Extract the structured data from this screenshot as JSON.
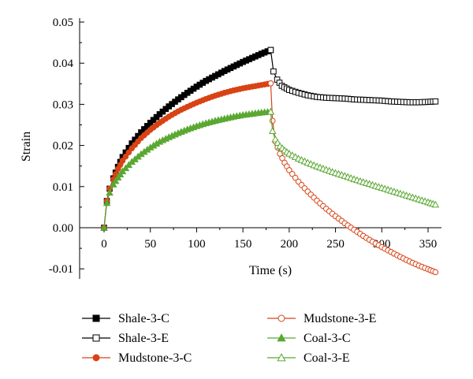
{
  "chart_data": {
    "type": "line",
    "xlabel": "Time (s)",
    "ylabel": "Strain",
    "xlim": [
      -10,
      370
    ],
    "ylim": [
      -0.015,
      0.05
    ],
    "x_ticks": [
      "0",
      "50",
      "100",
      "150",
      "200",
      "250",
      "300",
      "350"
    ],
    "y_ticks": [
      "0.05",
      "0.04",
      "0.03",
      "0.02",
      "0.01",
      "0.00",
      "-0.01"
    ],
    "legend_position": "bottom",
    "series": [
      {
        "name": "Shale-3-C",
        "color": "#000000",
        "marker": "square",
        "filled": true,
        "x": [
          0,
          3,
          6,
          10,
          15,
          20,
          30,
          40,
          50,
          60,
          70,
          80,
          90,
          100,
          110,
          120,
          130,
          140,
          150,
          160,
          170,
          180
        ],
        "y": [
          0,
          0.0065,
          0.0095,
          0.012,
          0.0148,
          0.0172,
          0.0205,
          0.0232,
          0.0255,
          0.0276,
          0.0295,
          0.0312,
          0.0328,
          0.0343,
          0.0357,
          0.0369,
          0.0381,
          0.0392,
          0.0403,
          0.0413,
          0.0423,
          0.0432
        ]
      },
      {
        "name": "Shale-3-E",
        "color": "#000000",
        "marker": "square",
        "filled": false,
        "x": [
          180,
          183,
          187,
          192,
          200,
          210,
          220,
          230,
          240,
          250,
          260,
          270,
          280,
          290,
          300,
          310,
          320,
          330,
          340,
          350,
          358
        ],
        "y": [
          0.0432,
          0.038,
          0.036,
          0.0345,
          0.0335,
          0.0328,
          0.0322,
          0.0318,
          0.0316,
          0.0315,
          0.0314,
          0.0312,
          0.0311,
          0.031,
          0.0309,
          0.0307,
          0.0306,
          0.0305,
          0.0305,
          0.0306,
          0.0307
        ]
      },
      {
        "name": "Mudstone-3-C",
        "color": "#d84315",
        "marker": "circle",
        "filled": true,
        "x": [
          0,
          3,
          6,
          10,
          15,
          20,
          30,
          40,
          50,
          60,
          70,
          80,
          90,
          100,
          110,
          120,
          130,
          140,
          150,
          160,
          170,
          180
        ],
        "y": [
          0,
          0.0065,
          0.0095,
          0.0118,
          0.0143,
          0.0163,
          0.0193,
          0.0218,
          0.0238,
          0.0255,
          0.027,
          0.0283,
          0.0294,
          0.0304,
          0.0313,
          0.0321,
          0.0328,
          0.0334,
          0.0339,
          0.0343,
          0.0347,
          0.0351
        ]
      },
      {
        "name": "Mudstone-3-E",
        "color": "#d84315",
        "marker": "circle",
        "filled": false,
        "x": [
          180,
          182,
          185,
          190,
          195,
          200,
          210,
          220,
          230,
          240,
          250,
          260,
          270,
          280,
          290,
          300,
          310,
          320,
          330,
          340,
          350,
          358
        ],
        "y": [
          0.0351,
          0.026,
          0.021,
          0.018,
          0.0158,
          0.014,
          0.0112,
          0.0088,
          0.0066,
          0.0046,
          0.0028,
          0.0011,
          -0.0005,
          -0.002,
          -0.0034,
          -0.0047,
          -0.0059,
          -0.0071,
          -0.0082,
          -0.0092,
          -0.0101,
          -0.0108
        ]
      },
      {
        "name": "Coal-3-C",
        "color": "#5aa832",
        "marker": "triangle",
        "filled": true,
        "x": [
          0,
          3,
          6,
          10,
          15,
          20,
          30,
          40,
          50,
          60,
          70,
          80,
          90,
          100,
          110,
          120,
          130,
          140,
          150,
          160,
          170,
          180
        ],
        "y": [
          0,
          0.006,
          0.0085,
          0.0105,
          0.0122,
          0.0137,
          0.016,
          0.0179,
          0.0195,
          0.0209,
          0.022,
          0.023,
          0.0239,
          0.0247,
          0.0254,
          0.026,
          0.0265,
          0.027,
          0.0274,
          0.0277,
          0.028,
          0.0282
        ]
      },
      {
        "name": "Coal-3-E",
        "color": "#5aa832",
        "marker": "triangle",
        "filled": false,
        "x": [
          180,
          182,
          185,
          190,
          195,
          200,
          210,
          220,
          230,
          240,
          250,
          260,
          270,
          280,
          290,
          300,
          310,
          320,
          330,
          340,
          350,
          358
        ],
        "y": [
          0.0282,
          0.0235,
          0.0215,
          0.0198,
          0.0188,
          0.018,
          0.0168,
          0.0158,
          0.0149,
          0.0141,
          0.0133,
          0.0126,
          0.0118,
          0.0111,
          0.0104,
          0.0097,
          0.009,
          0.0083,
          0.0076,
          0.0069,
          0.0062,
          0.0056
        ]
      }
    ]
  }
}
